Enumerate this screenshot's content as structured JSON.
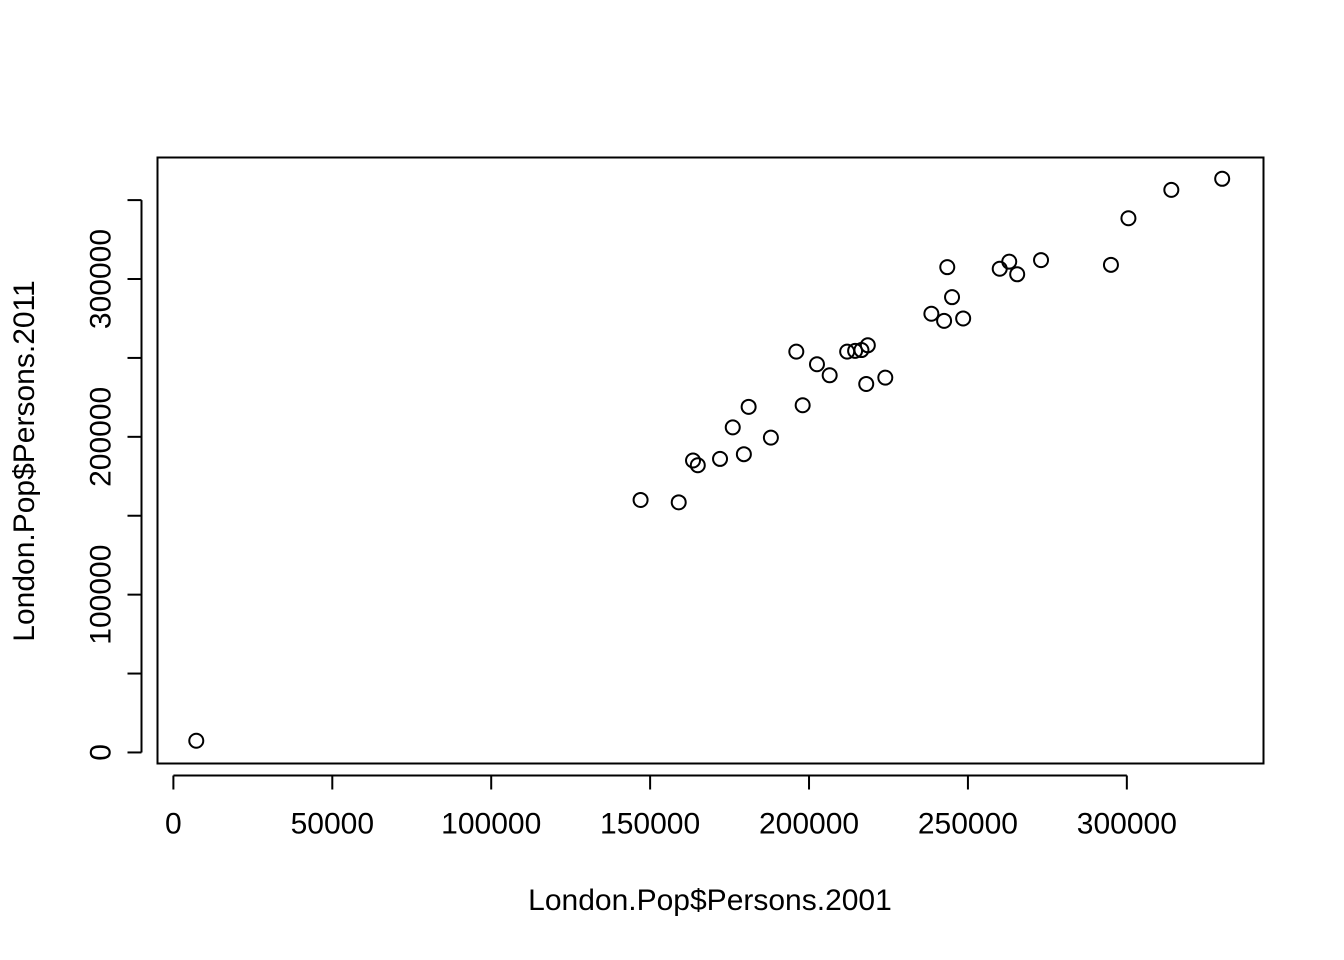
{
  "chart_data": {
    "type": "scatter",
    "title": "",
    "xlabel": "London.Pop$Persons.2001",
    "ylabel": "London.Pop$Persons.2011",
    "xlim": [
      -5000,
      343000
    ],
    "ylim": [
      -7000,
      377000
    ],
    "x_ticks": [
      0,
      50000,
      100000,
      150000,
      200000,
      250000,
      300000
    ],
    "x_tick_labels": [
      "0",
      "50000",
      "100000",
      "150000",
      "200000",
      "250000",
      "300000"
    ],
    "y_ticks": [
      0,
      50000,
      100000,
      150000,
      200000,
      250000,
      300000,
      350000
    ],
    "y_tick_labels": [
      "0",
      "",
      "100000",
      "",
      "200000",
      "",
      "300000",
      ""
    ],
    "grid": false,
    "legend": "none",
    "marker": "open-circle",
    "points": [
      {
        "x": 7200,
        "y": 7400
      },
      {
        "x": 147000,
        "y": 160000
      },
      {
        "x": 159000,
        "y": 158500
      },
      {
        "x": 163500,
        "y": 185000
      },
      {
        "x": 165000,
        "y": 182000
      },
      {
        "x": 172000,
        "y": 186000
      },
      {
        "x": 176000,
        "y": 206000
      },
      {
        "x": 179500,
        "y": 189000
      },
      {
        "x": 181000,
        "y": 219000
      },
      {
        "x": 188000,
        "y": 199500
      },
      {
        "x": 196000,
        "y": 254000
      },
      {
        "x": 198000,
        "y": 220000
      },
      {
        "x": 202500,
        "y": 246000
      },
      {
        "x": 206500,
        "y": 239000
      },
      {
        "x": 212000,
        "y": 254000
      },
      {
        "x": 214500,
        "y": 254500
      },
      {
        "x": 216500,
        "y": 255000
      },
      {
        "x": 218500,
        "y": 258000
      },
      {
        "x": 218000,
        "y": 233500
      },
      {
        "x": 224000,
        "y": 237500
      },
      {
        "x": 238500,
        "y": 278000
      },
      {
        "x": 242500,
        "y": 273500
      },
      {
        "x": 243500,
        "y": 307500
      },
      {
        "x": 245000,
        "y": 288500
      },
      {
        "x": 248500,
        "y": 275000
      },
      {
        "x": 260000,
        "y": 306500
      },
      {
        "x": 263000,
        "y": 311000
      },
      {
        "x": 265500,
        "y": 303000
      },
      {
        "x": 273000,
        "y": 312000
      },
      {
        "x": 295000,
        "y": 309000
      },
      {
        "x": 300500,
        "y": 338500
      },
      {
        "x": 314000,
        "y": 356500
      },
      {
        "x": 330000,
        "y": 363500
      }
    ]
  }
}
